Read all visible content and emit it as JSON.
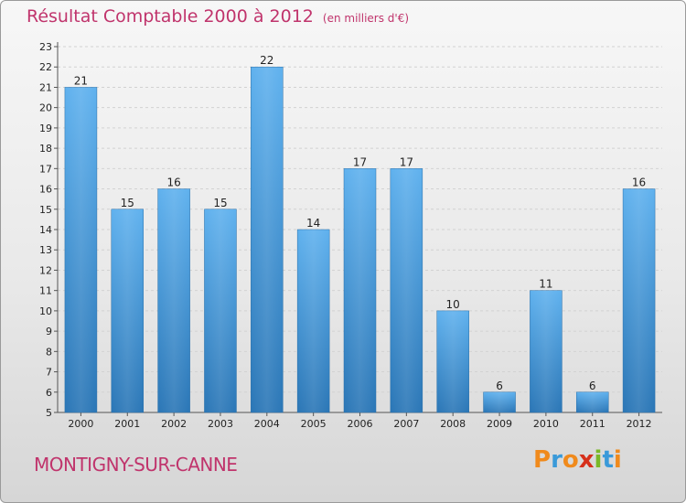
{
  "title": "Résultat Comptable 2000 à 2012",
  "unit": "(en milliers d'€)",
  "place": "MONTIGNY-SUR-CANNE",
  "logo": {
    "letters": [
      "P",
      "r",
      "o",
      "x",
      "i",
      "t",
      "i"
    ],
    "colors": [
      "#f08a1c",
      "#3a9ad9",
      "#f08a1c",
      "#d6301b",
      "#7ab827",
      "#3a9ad9",
      "#f08a1c"
    ]
  },
  "colors": {
    "title": "#c0346c",
    "bar_light": "#5aacea",
    "bar_dark": "#2a78b8"
  },
  "chart_data": {
    "type": "bar",
    "title": "Résultat Comptable 2000 à 2012",
    "categories": [
      "2000",
      "2001",
      "2002",
      "2003",
      "2004",
      "2005",
      "2006",
      "2007",
      "2008",
      "2009",
      "2010",
      "2011",
      "2012"
    ],
    "values": [
      21,
      15,
      16,
      15,
      22,
      14,
      17,
      17,
      10,
      6,
      11,
      6,
      16
    ],
    "ylim": [
      5,
      23
    ],
    "yticks": [
      5,
      6,
      7,
      8,
      9,
      10,
      11,
      12,
      13,
      14,
      15,
      16,
      17,
      18,
      19,
      20,
      21,
      22,
      23
    ],
    "grid": true
  }
}
